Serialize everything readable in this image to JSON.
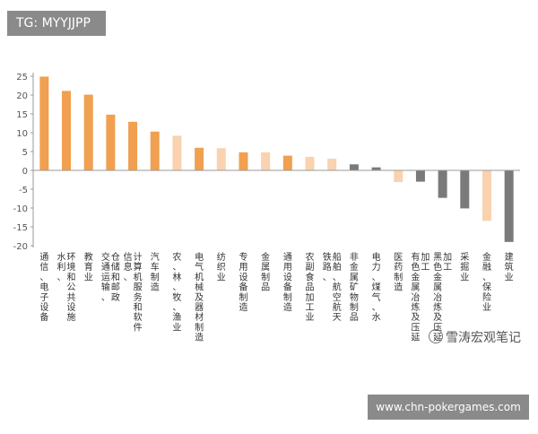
{
  "overlays": {
    "tg_label": "TG: MYYJJPP",
    "watermark_text": "雪涛宏观笔记",
    "site_label": "www.chn-pokergames.com"
  },
  "colors": {
    "orange_strong": "#f0a050",
    "orange_light": "#fad2b0",
    "gray_dark": "#7a7a7a",
    "axis": "#999999",
    "tick_text": "#555555"
  },
  "chart_data": {
    "type": "bar",
    "title": "",
    "xlabel": "",
    "ylabel": "",
    "ylim": [
      -20,
      25
    ],
    "yticks": [
      25,
      20,
      15,
      10,
      5,
      0,
      -5,
      -10,
      -15,
      -20
    ],
    "grid": false,
    "legend": "none",
    "categories": [
      "通信、电子设备",
      "水利、环境和公共设施",
      "教育业",
      "交通运输、仓储和邮政",
      "信息、计算机服务和软件",
      "汽车制造",
      "农、林、牧、渔业",
      "电气机械及器材制造",
      "纺织业",
      "专用设备制造",
      "金属制品",
      "通用设备制造",
      "农副食品加工业",
      "铁路、船舶、航空航天",
      "非金属矿物制品",
      "电力、煤气、水",
      "医药制造",
      "有色金属冶炼及压延加工",
      "黑色金属冶炼及压延加工",
      "采掘业",
      "金融、保险业",
      "建筑业"
    ],
    "values": [
      24.9,
      21.1,
      20.1,
      14.8,
      12.9,
      10.3,
      9.2,
      6.0,
      5.9,
      4.8,
      4.8,
      3.9,
      3.6,
      3.1,
      1.6,
      0.8,
      -3.1,
      -3.0,
      -7.3,
      -10.1,
      -13.4,
      -19.0
    ],
    "bar_colors": [
      "#f0a050",
      "#f0a050",
      "#f0a050",
      "#f0a050",
      "#f0a050",
      "#f0a050",
      "#fad2b0",
      "#f0a050",
      "#fad2b0",
      "#f0a050",
      "#fad2b0",
      "#f0a050",
      "#fad2b0",
      "#fad2b0",
      "#7a7a7a",
      "#7a7a7a",
      "#fad2b0",
      "#7a7a7a",
      "#7a7a7a",
      "#7a7a7a",
      "#fad2b0",
      "#7a7a7a"
    ]
  }
}
